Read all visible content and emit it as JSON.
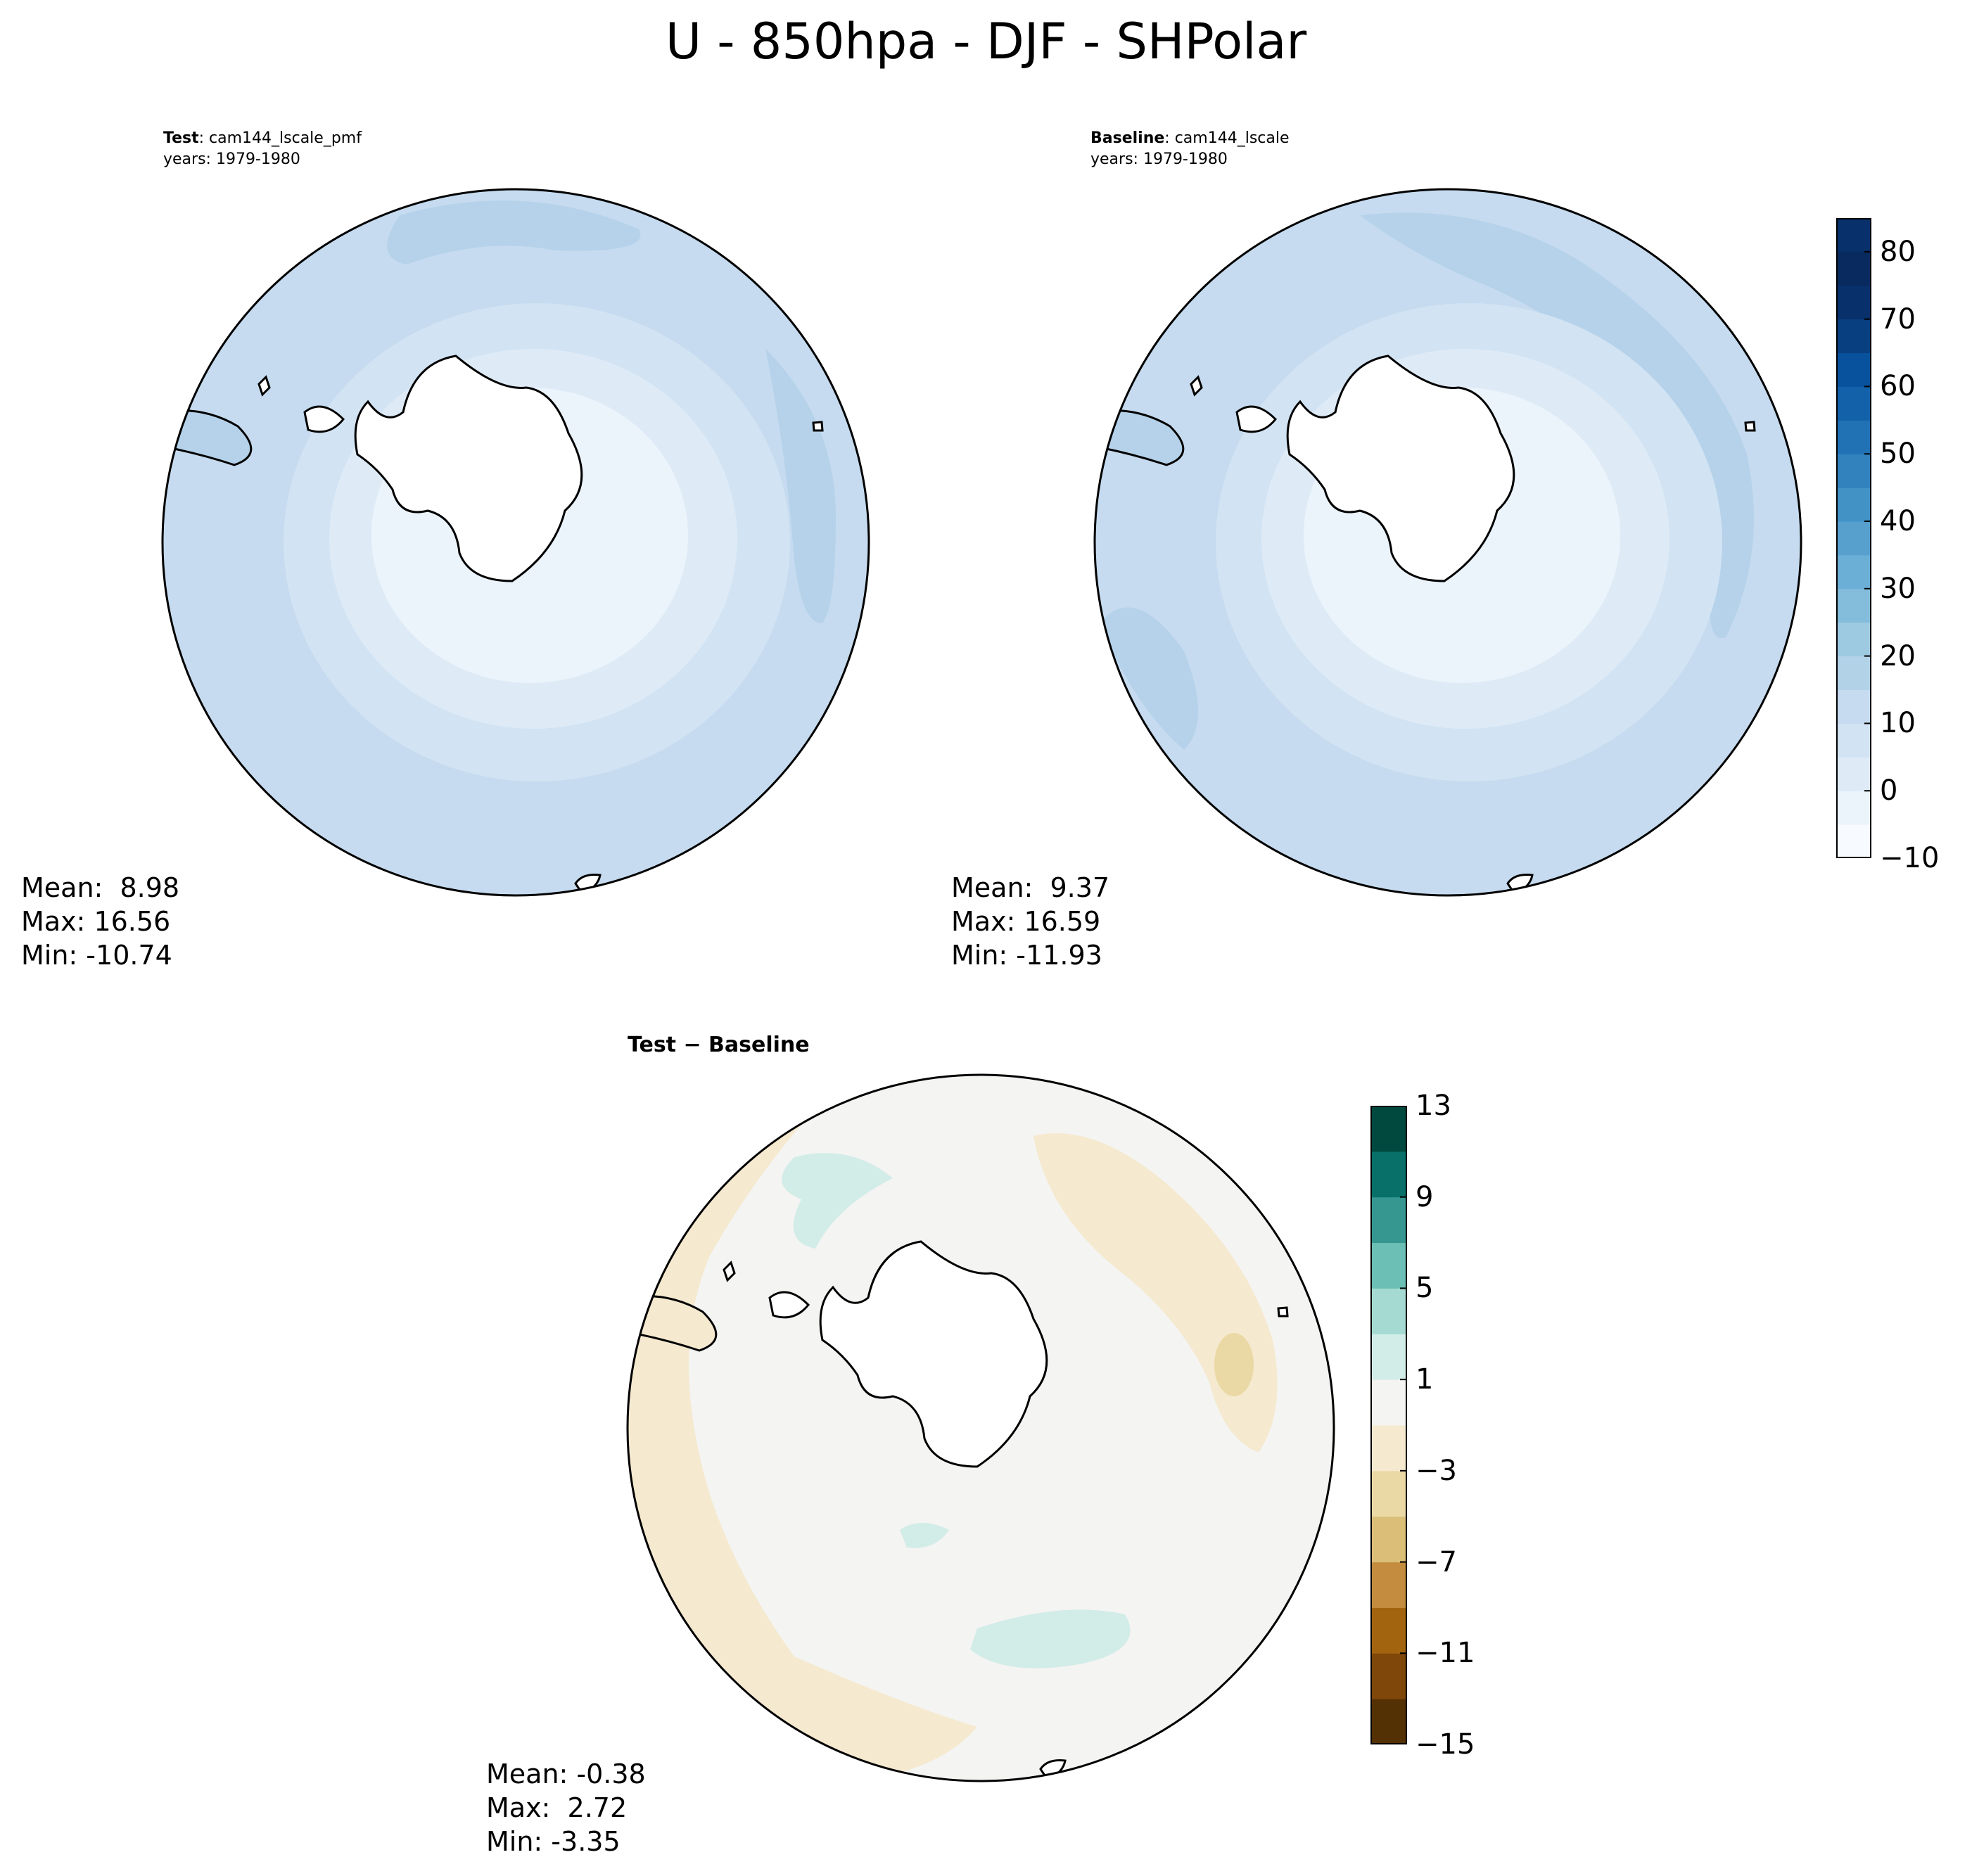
{
  "title": "U - 850hpa - DJF - SHPolar",
  "panels": [
    {
      "id": "test",
      "label_bold": "Test",
      "label_sep": ": ",
      "label_name": "cam144_lscale_pmf",
      "years": "years: 1979-1980",
      "stats": {
        "mean": "Mean:  8.98",
        "max": "Max: 16.56",
        "min": "Min: -10.74"
      }
    },
    {
      "id": "baseline",
      "label_bold": "Baseline",
      "label_sep": ": ",
      "label_name": "cam144_lscale",
      "years": "years: 1979-1980",
      "stats": {
        "mean": "Mean:  9.37",
        "max": "Max: 16.59",
        "min": "Min: -11.93"
      }
    },
    {
      "id": "difference",
      "label_bold": "Test − Baseline",
      "stats": {
        "mean": "Mean: -0.38",
        "max": "Max:  2.72",
        "min": "Min: -3.35"
      }
    }
  ],
  "colorbar_main": {
    "min": -10,
    "max": 85,
    "step": 5,
    "ticks": [
      "−10",
      "0",
      "10",
      "20",
      "30",
      "40",
      "50",
      "60",
      "70",
      "80"
    ],
    "tick_values": [
      -10,
      0,
      10,
      20,
      30,
      40,
      50,
      60,
      70,
      80
    ],
    "colors": [
      "#f7fbff",
      "#ebf3fb",
      "#deebf7",
      "#d2e3f3",
      "#c6dbef",
      "#b2d2e8",
      "#9ecae1",
      "#84bcdb",
      "#6baed6",
      "#57a0ce",
      "#4292c6",
      "#3182bd",
      "#2171b5",
      "#1361a9",
      "#08519c",
      "#083f80",
      "#08306b",
      "#082a5e",
      "#08306b"
    ]
  },
  "colorbar_diff": {
    "min": -15,
    "max": 13,
    "step": 2,
    "ticks": [
      "−15",
      "−11",
      "−7",
      "−3",
      "1",
      "5",
      "9",
      "13"
    ],
    "tick_values": [
      -15,
      -11,
      -7,
      -3,
      1,
      5,
      9,
      13
    ],
    "colors": [
      "#543005",
      "#7f4709",
      "#a3640f",
      "#c38c3e",
      "#dbbe78",
      "#ebd9a5",
      "#f5e9cf",
      "#f4f4f2",
      "#d2ece8",
      "#a4dad1",
      "#6cbfb4",
      "#35978f",
      "#087069",
      "#01493f"
    ]
  },
  "map_colors": {
    "test_bg": "#c6dbef",
    "baseline_bg": "#c6dbef",
    "diff_bg": "#f4f4f2",
    "land": "#ffffff"
  }
}
